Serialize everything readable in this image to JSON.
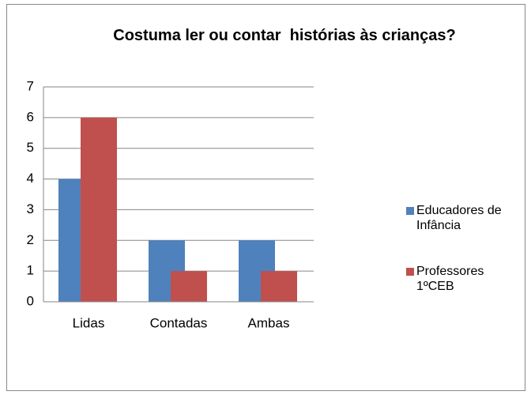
{
  "chart_data": {
    "type": "bar",
    "title": "Costuma ler ou contar  histórias às crianças?",
    "categories": [
      "Lidas",
      "Contadas",
      "Ambas"
    ],
    "series": [
      {
        "name": "Educadores de Infância",
        "color": "#4f81bd",
        "values": [
          4,
          2,
          2
        ]
      },
      {
        "name": "Professores 1ºCEB",
        "color": "#c0504d",
        "values": [
          6,
          1,
          1
        ]
      }
    ],
    "ylim": [
      0,
      7
    ],
    "yticks": [
      0,
      1,
      2,
      3,
      4,
      5,
      6,
      7
    ],
    "grid": true,
    "legend": "right"
  }
}
